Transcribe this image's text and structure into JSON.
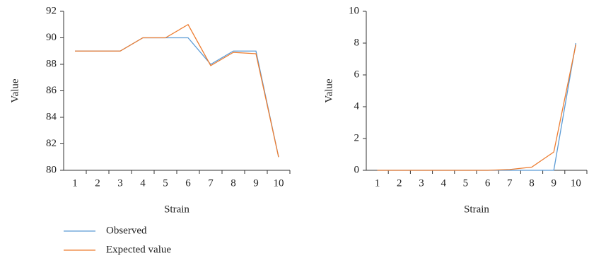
{
  "chart_data": [
    {
      "type": "line",
      "x_label": "Strain",
      "y_label": "Value",
      "categories": [
        "1",
        "2",
        "3",
        "4",
        "5",
        "6",
        "7",
        "8",
        "9",
        "10"
      ],
      "series": [
        {
          "name": "Observed",
          "color": "#5b9bd5",
          "values": [
            89,
            89,
            89,
            90,
            90,
            90,
            88,
            89,
            89,
            81
          ]
        },
        {
          "name": "Expected value",
          "color": "#ed7d31",
          "values": [
            89,
            89,
            89,
            90,
            90,
            91,
            87.9,
            88.9,
            88.8,
            81
          ]
        }
      ],
      "ylim": [
        80,
        92
      ],
      "yticks": [
        80,
        82,
        84,
        86,
        88,
        90,
        92
      ]
    },
    {
      "type": "line",
      "x_label": "Strain",
      "y_label": "Value",
      "categories": [
        "1",
        "2",
        "3",
        "4",
        "5",
        "6",
        "7",
        "8",
        "9",
        "10"
      ],
      "series": [
        {
          "name": "Observed",
          "color": "#5b9bd5",
          "values": [
            0,
            0,
            0,
            0,
            0,
            0,
            0,
            0,
            0,
            8
          ]
        },
        {
          "name": "Expected value",
          "color": "#ed7d31",
          "values": [
            0,
            0,
            0,
            0,
            0,
            0,
            0.05,
            0.2,
            1.15,
            7.9
          ]
        }
      ],
      "ylim": [
        0,
        10
      ],
      "yticks": [
        0,
        2,
        4,
        6,
        8,
        10
      ]
    }
  ]
}
